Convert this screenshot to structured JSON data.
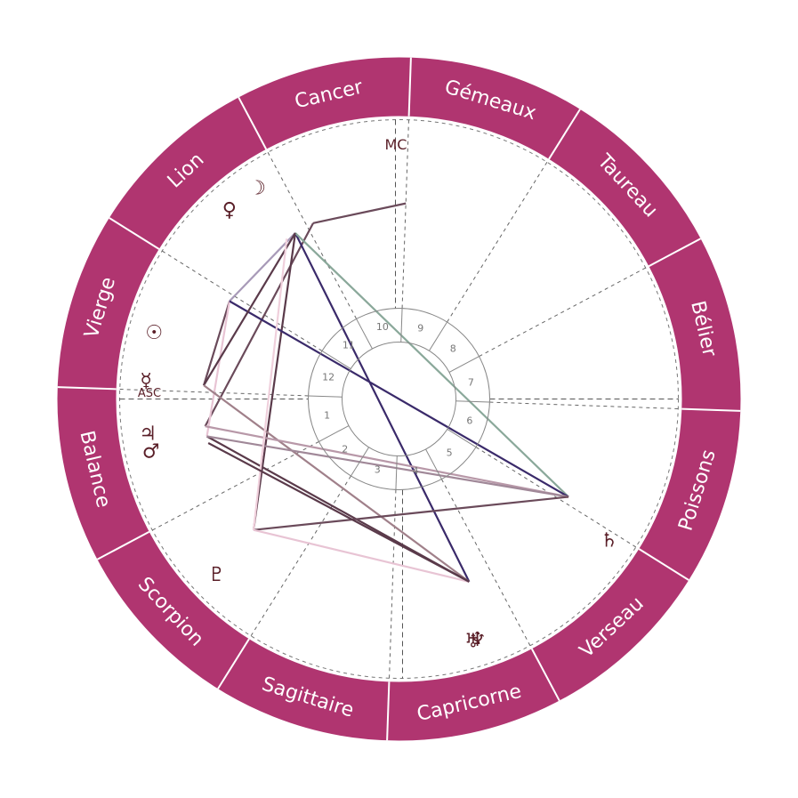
{
  "colors": {
    "zodiac_ring": "#b03570",
    "ring_separator": "#ffffff",
    "glyph": "#5a1f28",
    "cusp_line": "#666666",
    "house_circle": "#888888"
  },
  "signs": [
    {
      "name": "Bélier",
      "deg": 0
    },
    {
      "name": "Taureau",
      "deg": 30
    },
    {
      "name": "Gémeaux",
      "deg": 60
    },
    {
      "name": "Cancer",
      "deg": 90
    },
    {
      "name": "Lion",
      "deg": 120
    },
    {
      "name": "Vierge",
      "deg": 150
    },
    {
      "name": "Balance",
      "deg": 180
    },
    {
      "name": "Scorpion",
      "deg": 210
    },
    {
      "name": "Sagittaire",
      "deg": 240
    },
    {
      "name": "Capricorne",
      "deg": 270
    },
    {
      "name": "Verseau",
      "deg": 300
    },
    {
      "name": "Poissons",
      "deg": 330
    }
  ],
  "axes": {
    "asc": "ASC",
    "mc": "MC"
  },
  "houses": [
    {
      "num": "1",
      "deg": 180
    },
    {
      "num": "2",
      "deg": 210
    },
    {
      "num": "3",
      "deg": 240
    },
    {
      "num": "4",
      "deg": 270
    },
    {
      "num": "5",
      "deg": 300
    },
    {
      "num": "6",
      "deg": 330
    },
    {
      "num": "7",
      "deg": 0
    },
    {
      "num": "8",
      "deg": 30
    },
    {
      "num": "9",
      "deg": 60
    },
    {
      "num": "10",
      "deg": 90
    },
    {
      "num": "11",
      "deg": 120
    },
    {
      "num": "12",
      "deg": 150
    }
  ],
  "planets": [
    {
      "name": "Lune",
      "glyph": "☽",
      "deg": 126
    },
    {
      "name": "Vénus",
      "glyph": "♀",
      "deg": 134
    },
    {
      "name": "Soleil",
      "glyph": "☉",
      "deg": 167
    },
    {
      "name": "Mercure",
      "glyph": "☿",
      "deg": 178
    },
    {
      "name": "Jupiter",
      "glyph": "♃",
      "deg": 190
    },
    {
      "name": "Mars",
      "glyph": "♂",
      "deg": 194
    },
    {
      "name": "Pluton",
      "glyph": "♇",
      "deg": 226
    },
    {
      "name": "Uranus",
      "glyph": "♅",
      "deg": 289
    },
    {
      "name": "Neptune",
      "glyph": "♆",
      "deg": 290
    },
    {
      "name": "Saturne",
      "glyph": "♄",
      "deg": 328
    }
  ],
  "aspects": [
    {
      "from": 118,
      "to": 90,
      "color": "#6a4a5a"
    },
    {
      "from": 118,
      "to": 190,
      "color": "#6a4a5a"
    },
    {
      "from": 124,
      "to": 152,
      "color": "#a89ab8"
    },
    {
      "from": 124,
      "to": 224,
      "color": "#5a3a4a"
    },
    {
      "from": 124,
      "to": 293,
      "color": "#3a2a6a"
    },
    {
      "from": 124,
      "to": 332,
      "color": "#8aa89a"
    },
    {
      "from": 152,
      "to": 178,
      "color": "#6a4a5a"
    },
    {
      "from": 152,
      "to": 193,
      "color": "#e8c4d4"
    },
    {
      "from": 152,
      "to": 332,
      "color": "#3a2a6a"
    },
    {
      "from": 178,
      "to": 124,
      "color": "#5a3a4a"
    },
    {
      "from": 178,
      "to": 293,
      "color": "#a0808a"
    },
    {
      "from": 193,
      "to": 293,
      "color": "#5a3a4a"
    },
    {
      "from": 190,
      "to": 332,
      "color": "#b898a8"
    },
    {
      "from": 193,
      "to": 332,
      "color": "#a08898"
    },
    {
      "from": 224,
      "to": 332,
      "color": "#6a4a5a"
    },
    {
      "from": 224,
      "to": 293,
      "color": "#e8c4d4"
    },
    {
      "from": 127,
      "to": 224,
      "color": "#f0d0dc"
    },
    {
      "from": 195,
      "to": 293,
      "color": "#5a3a4a"
    }
  ]
}
